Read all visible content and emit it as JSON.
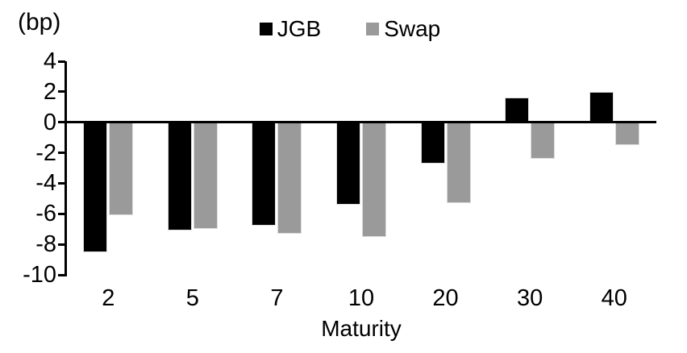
{
  "chart_data": {
    "type": "bar",
    "title": "",
    "unit_label": "(bp)",
    "xlabel": "Maturity",
    "categories": [
      "2",
      "5",
      "7",
      "10",
      "20",
      "30",
      "40"
    ],
    "series": [
      {
        "name": "JGB",
        "color": "#000000",
        "values": [
          -8.5,
          -7.1,
          -6.8,
          -5.4,
          -2.7,
          1.6,
          2.0
        ]
      },
      {
        "name": "Swap",
        "color": "#9a9a9a",
        "values": [
          -6.1,
          -7.0,
          -7.3,
          -7.5,
          -5.3,
          -2.4,
          -1.5
        ]
      }
    ],
    "y_ticks": [
      4,
      2,
      0,
      -2,
      -4,
      -6,
      -8,
      -10
    ],
    "ylim": [
      -10,
      4
    ],
    "legend_position": "top",
    "grid": false,
    "zero_baseline": true
  }
}
